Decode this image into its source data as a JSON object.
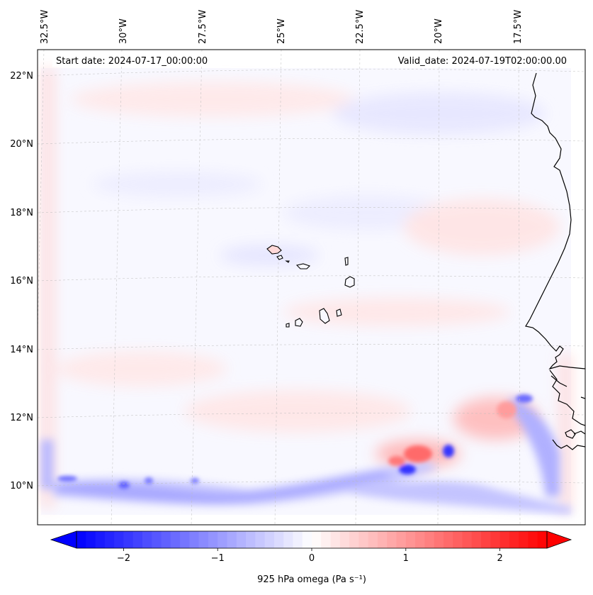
{
  "map": {
    "start_date": "Start date: 2024-07-17_00:00:00",
    "valid_date": "Valid_date: 2024-07-19T02:00:00.00",
    "lon_labels": [
      "32.5°W",
      "30°W",
      "27.5°W",
      "25°W",
      "22.5°W",
      "20°W",
      "17.5°W"
    ],
    "lat_labels": [
      "22°N",
      "20°N",
      "18°N",
      "16°N",
      "14°N",
      "12°N",
      "10°N"
    ],
    "gridlines": "dashed",
    "coastline_color": "#000000"
  },
  "colorbar": {
    "label": "925 hPa omega (Pa s⁻¹)",
    "ticks": [
      "−2",
      "−1",
      "0",
      "1",
      "2"
    ],
    "tick_values": [
      -2,
      -1,
      0,
      1,
      2
    ],
    "range": [
      -2.5,
      2.5
    ],
    "extend": "both",
    "colormap": "bwr",
    "min_color": "#0000ff",
    "mid_color": "#ffffff",
    "max_color": "#ff0000"
  }
}
